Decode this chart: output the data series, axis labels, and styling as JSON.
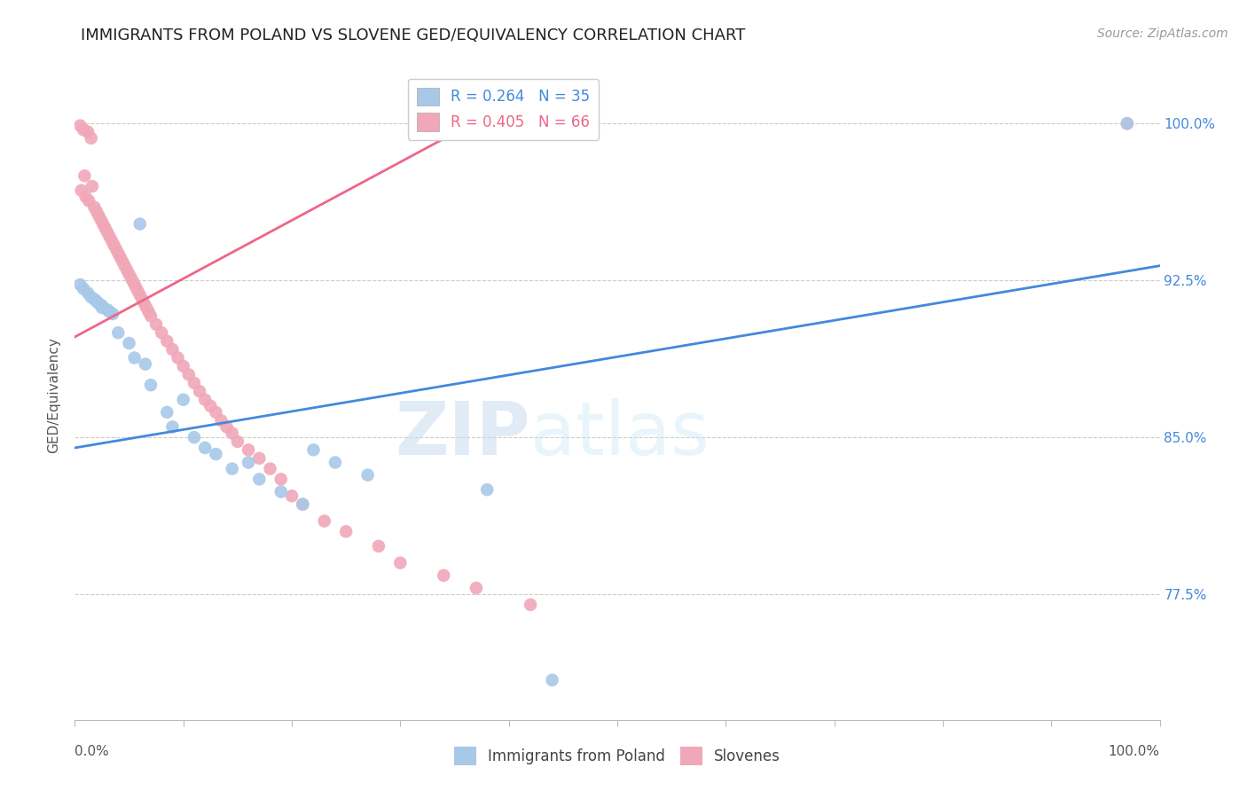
{
  "title": "IMMIGRANTS FROM POLAND VS SLOVENE GED/EQUIVALENCY CORRELATION CHART",
  "source": "Source: ZipAtlas.com",
  "ylabel": "GED/Equivalency",
  "ytick_vals": [
    0.775,
    0.85,
    0.925,
    1.0
  ],
  "ytick_labels": [
    "77.5%",
    "85.0%",
    "92.5%",
    "100.0%"
  ],
  "xlim": [
    0.0,
    1.0
  ],
  "ylim": [
    0.715,
    1.025
  ],
  "blue_R": 0.264,
  "blue_N": 35,
  "pink_R": 0.405,
  "pink_N": 66,
  "blue_color": "#a8c8e8",
  "pink_color": "#f0a8b8",
  "blue_line_color": "#4488dd",
  "pink_line_color": "#ee6688",
  "legend_label_blue": "Immigrants from Poland",
  "legend_label_pink": "Slovenes",
  "grid_color": "#cccccc",
  "background_color": "#ffffff",
  "title_fontsize": 13,
  "axis_label_fontsize": 11,
  "tick_fontsize": 11,
  "legend_fontsize": 12,
  "source_fontsize": 10,
  "blue_x": [
    0.97,
    0.005,
    0.008,
    0.012,
    0.015,
    0.018,
    0.02,
    0.022,
    0.025,
    0.025,
    0.03,
    0.032,
    0.035,
    0.04,
    0.05,
    0.055,
    0.06,
    0.065,
    0.07,
    0.085,
    0.09,
    0.1,
    0.11,
    0.12,
    0.13,
    0.145,
    0.16,
    0.17,
    0.19,
    0.21,
    0.22,
    0.24,
    0.27,
    0.38,
    0.44
  ],
  "blue_y": [
    1.0,
    0.923,
    0.921,
    0.919,
    0.917,
    0.916,
    0.915,
    0.914,
    0.913,
    0.912,
    0.911,
    0.91,
    0.909,
    0.9,
    0.895,
    0.888,
    0.952,
    0.885,
    0.875,
    0.862,
    0.855,
    0.868,
    0.85,
    0.845,
    0.842,
    0.835,
    0.838,
    0.83,
    0.824,
    0.818,
    0.844,
    0.838,
    0.832,
    0.825,
    0.734
  ],
  "pink_x": [
    0.005,
    0.006,
    0.008,
    0.009,
    0.01,
    0.012,
    0.013,
    0.015,
    0.016,
    0.018,
    0.02,
    0.022,
    0.024,
    0.026,
    0.028,
    0.03,
    0.032,
    0.034,
    0.036,
    0.038,
    0.04,
    0.042,
    0.044,
    0.046,
    0.048,
    0.05,
    0.052,
    0.054,
    0.056,
    0.058,
    0.06,
    0.062,
    0.064,
    0.066,
    0.068,
    0.07,
    0.075,
    0.08,
    0.085,
    0.09,
    0.095,
    0.1,
    0.105,
    0.11,
    0.115,
    0.12,
    0.125,
    0.13,
    0.135,
    0.14,
    0.145,
    0.15,
    0.16,
    0.17,
    0.18,
    0.19,
    0.2,
    0.21,
    0.23,
    0.25,
    0.28,
    0.3,
    0.34,
    0.37,
    0.42,
    0.97
  ],
  "pink_y": [
    0.999,
    0.968,
    0.997,
    0.975,
    0.965,
    0.996,
    0.963,
    0.993,
    0.97,
    0.96,
    0.958,
    0.956,
    0.954,
    0.952,
    0.95,
    0.948,
    0.946,
    0.944,
    0.942,
    0.94,
    0.938,
    0.936,
    0.934,
    0.932,
    0.93,
    0.928,
    0.926,
    0.924,
    0.922,
    0.92,
    0.918,
    0.916,
    0.914,
    0.912,
    0.91,
    0.908,
    0.904,
    0.9,
    0.896,
    0.892,
    0.888,
    0.884,
    0.88,
    0.876,
    0.872,
    0.868,
    0.865,
    0.862,
    0.858,
    0.855,
    0.852,
    0.848,
    0.844,
    0.84,
    0.835,
    0.83,
    0.822,
    0.818,
    0.81,
    0.805,
    0.798,
    0.79,
    0.784,
    0.778,
    0.77,
    1.0
  ],
  "blue_line_x": [
    0.0,
    1.0
  ],
  "blue_line_y": [
    0.845,
    0.932
  ],
  "pink_line_x": [
    0.0,
    0.42
  ],
  "pink_line_y": [
    0.898,
    1.015
  ]
}
